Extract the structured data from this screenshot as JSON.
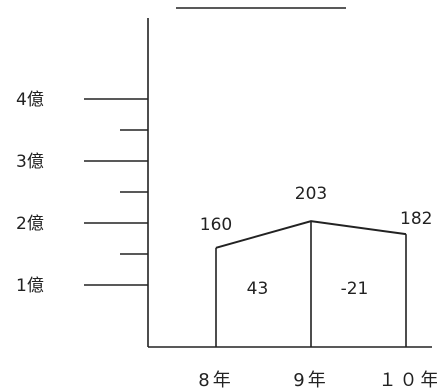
{
  "chart_data": {
    "type": "line",
    "title": "",
    "xlabel": "",
    "ylabel": "",
    "y_unit": "億",
    "ylim": [
      0,
      5.3
    ],
    "y_ticks_major": [
      {
        "value": 1,
        "label": "1億"
      },
      {
        "value": 2,
        "label": "2億"
      },
      {
        "value": 3,
        "label": "3億"
      },
      {
        "value": 4,
        "label": "4億"
      }
    ],
    "y_ticks_minor": [
      1.5,
      2.5,
      3.5
    ],
    "categories": [
      "8年",
      "9年",
      "10年"
    ],
    "category_labels": [
      "8年",
      "9年",
      "１０年"
    ],
    "values": [
      160,
      203,
      182
    ],
    "value_labels": [
      "160",
      "203",
      "182"
    ],
    "differences": [
      {
        "between": [
          "8年",
          "9年"
        ],
        "value": 43,
        "label": "43"
      },
      {
        "between": [
          "9年",
          "10年"
        ],
        "value": -21,
        "label": "-21"
      }
    ],
    "grid": false,
    "legend": "none"
  }
}
